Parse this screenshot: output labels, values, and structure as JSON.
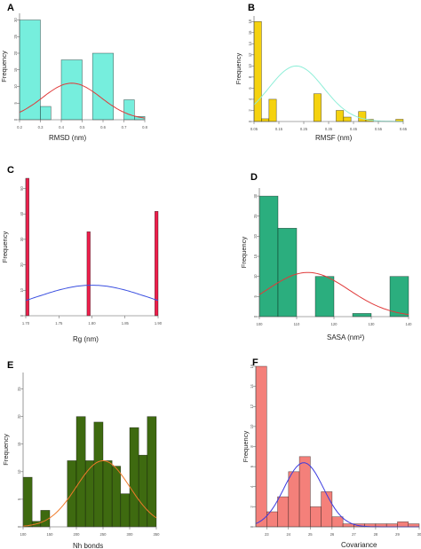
{
  "chart_data": [
    {
      "panel_label": "A",
      "type": "bar",
      "xlabel": "RMSD (nm)",
      "ylabel": "Frequency",
      "colors": {
        "bar": "#76EEDD",
        "curve": "#E03A3A"
      },
      "xlim": [
        0.2,
        0.8
      ],
      "ylim": [
        0,
        32
      ],
      "x_ticks": [
        0.2,
        0.3,
        0.4,
        0.5,
        0.6,
        0.7,
        0.8
      ],
      "x_tick_labels": [
        "0.2",
        "0.3",
        "0.4",
        "0.5",
        "0.6",
        "0.7",
        "0.8"
      ],
      "y_ticks": [
        0,
        5,
        10,
        15,
        20,
        25,
        30
      ],
      "y_tick_labels": [
        "0",
        "5",
        "10",
        "15",
        "20",
        "25",
        "30"
      ],
      "bins": [
        [
          0.2,
          0.3
        ],
        [
          0.3,
          0.35
        ],
        [
          0.4,
          0.5
        ],
        [
          0.55,
          0.65
        ],
        [
          0.7,
          0.75
        ],
        [
          0.75,
          0.8
        ]
      ],
      "values": [
        30,
        4,
        18,
        20,
        6,
        1
      ],
      "curve": {
        "mean": 0.45,
        "sd": 0.14,
        "peak": 11
      }
    },
    {
      "panel_label": "B",
      "type": "bar",
      "xlabel": "RMSF (nm)",
      "ylabel": "Frequency",
      "colors": {
        "bar": "#F5D20F",
        "curve": "#8EEED8"
      },
      "xlim": [
        0.05,
        0.65
      ],
      "ylim": [
        0,
        19
      ],
      "x_ticks": [
        0.05,
        0.15,
        0.25,
        0.35,
        0.45,
        0.55,
        0.65
      ],
      "x_tick_labels": [
        "0.05",
        "0.15",
        "0.25",
        "0.35",
        "0.45",
        "0.55",
        "0.65"
      ],
      "y_ticks": [
        0,
        2,
        4,
        6,
        8,
        10,
        12,
        14,
        16,
        18
      ],
      "y_tick_labels": [
        "0",
        "2",
        "4",
        "6",
        "8",
        "10",
        "12",
        "14",
        "16",
        "18"
      ],
      "bins": [
        [
          0.05,
          0.08
        ],
        [
          0.08,
          0.11
        ],
        [
          0.11,
          0.14
        ],
        [
          0.29,
          0.32
        ],
        [
          0.38,
          0.41
        ],
        [
          0.41,
          0.44
        ],
        [
          0.47,
          0.5
        ],
        [
          0.5,
          0.53
        ],
        [
          0.62,
          0.65
        ]
      ],
      "values": [
        18,
        0.5,
        4,
        5,
        2,
        0.8,
        1.8,
        0.4,
        0.4
      ],
      "curve": {
        "mean": 0.22,
        "sd": 0.11,
        "peak": 10
      }
    },
    {
      "panel_label": "C",
      "type": "bar",
      "xlabel": "Rg (nm)",
      "ylabel": "Frequency",
      "colors": {
        "bar": "#EE1E4B",
        "curve": "#3A4FE0"
      },
      "xlim": [
        1.7,
        1.9
      ],
      "ylim": [
        0,
        54
      ],
      "x_ticks": [
        1.7,
        1.75,
        1.8,
        1.85,
        1.9
      ],
      "x_tick_labels": [
        "1.70",
        "1.75",
        "1.80",
        "1.85",
        "1.90"
      ],
      "y_ticks": [
        0,
        10,
        20,
        30,
        40,
        50
      ],
      "y_tick_labels": [
        "0",
        "10",
        "20",
        "30",
        "40",
        "50"
      ],
      "bins": [
        [
          1.7,
          1.705
        ],
        [
          1.7925,
          1.7975
        ],
        [
          1.895,
          1.9
        ]
      ],
      "values": [
        54,
        33,
        41
      ],
      "curve": {
        "mean": 1.8,
        "sd": 0.085,
        "peak": 12
      }
    },
    {
      "panel_label": "D",
      "type": "bar",
      "xlabel": "SASA (nm²)",
      "ylabel": "Frequency",
      "colors": {
        "bar": "#2BAE7E",
        "curve": "#E03A3A"
      },
      "xlim": [
        100,
        140
      ],
      "ylim": [
        0,
        32
      ],
      "x_ticks": [
        100,
        110,
        120,
        130,
        140
      ],
      "x_tick_labels": [
        "100",
        "110",
        "120",
        "130",
        "140"
      ],
      "y_ticks": [
        0,
        5,
        10,
        15,
        20,
        25,
        30
      ],
      "y_tick_labels": [
        "0",
        "5",
        "10",
        "15",
        "20",
        "25",
        "30"
      ],
      "bins": [
        [
          100,
          105
        ],
        [
          105,
          110
        ],
        [
          115,
          120
        ],
        [
          125,
          130
        ],
        [
          135,
          140
        ]
      ],
      "values": [
        30,
        22,
        10,
        0.8,
        10
      ],
      "curve": {
        "mean": 113,
        "sd": 11,
        "peak": 11
      }
    },
    {
      "panel_label": "E",
      "type": "bar",
      "xlabel": "Nh bonds",
      "ylabel": "Frequency",
      "colors": {
        "bar": "#3E6A10",
        "curve": "#F07A2A"
      },
      "xlim": [
        100,
        350
      ],
      "ylim": [
        0,
        28
      ],
      "x_ticks": [
        100,
        150,
        200,
        250,
        300,
        350
      ],
      "x_tick_labels": [
        "100",
        "150",
        "200",
        "250",
        "300",
        "350"
      ],
      "y_ticks": [
        0,
        5,
        10,
        15,
        20,
        25
      ],
      "y_tick_labels": [
        "0",
        "5",
        "10",
        "15",
        "20",
        "25"
      ],
      "bins": [
        [
          100,
          117
        ],
        [
          117,
          133
        ],
        [
          133,
          150
        ],
        [
          183,
          200
        ],
        [
          200,
          217
        ],
        [
          217,
          233
        ],
        [
          233,
          250
        ],
        [
          250,
          267
        ],
        [
          267,
          283
        ],
        [
          283,
          300
        ],
        [
          300,
          317
        ],
        [
          317,
          333
        ],
        [
          333,
          350
        ]
      ],
      "values": [
        9,
        1,
        3,
        12,
        20,
        12,
        19,
        12,
        11,
        6,
        18,
        13,
        20
      ],
      "curve": {
        "mean": 250,
        "sd": 50,
        "peak": 12
      }
    },
    {
      "panel_label": "F",
      "type": "bar",
      "xlabel": "Covariance",
      "ylabel": "Frequency",
      "colors": {
        "bar": "#F4807A",
        "curve": "#3A3AE0"
      },
      "xlim": [
        22.5,
        30
      ],
      "ylim": [
        0,
        16
      ],
      "x_ticks": [
        23,
        24,
        25,
        26,
        27,
        28,
        29,
        30
      ],
      "x_tick_labels": [
        "23",
        "24",
        "25",
        "26",
        "27",
        "28",
        "29",
        "30"
      ],
      "y_ticks": [
        0,
        2,
        4,
        6,
        8,
        10,
        12,
        14,
        16
      ],
      "y_tick_labels": [
        "0",
        "2",
        "4",
        "6",
        "8",
        "10",
        "12",
        "14",
        "16"
      ],
      "bins": [
        [
          22.5,
          23.0
        ],
        [
          23.0,
          23.5
        ],
        [
          23.5,
          24.0
        ],
        [
          24.0,
          24.5
        ],
        [
          24.5,
          25.0
        ],
        [
          25.0,
          25.5
        ],
        [
          25.5,
          26.0
        ],
        [
          26.0,
          26.5
        ],
        [
          26.5,
          27.0
        ],
        [
          27.0,
          27.5
        ],
        [
          27.5,
          28.0
        ],
        [
          28.0,
          28.5
        ],
        [
          28.5,
          29.0
        ],
        [
          29.0,
          29.5
        ],
        [
          29.5,
          30.0
        ]
      ],
      "values": [
        16,
        1.5,
        3,
        5.5,
        7,
        2,
        3.5,
        1,
        0.3,
        0.3,
        0.3,
        0.3,
        0.3,
        0.5,
        0.3
      ],
      "curve": {
        "mean": 24.7,
        "sd": 0.9,
        "peak": 6.4
      }
    }
  ]
}
